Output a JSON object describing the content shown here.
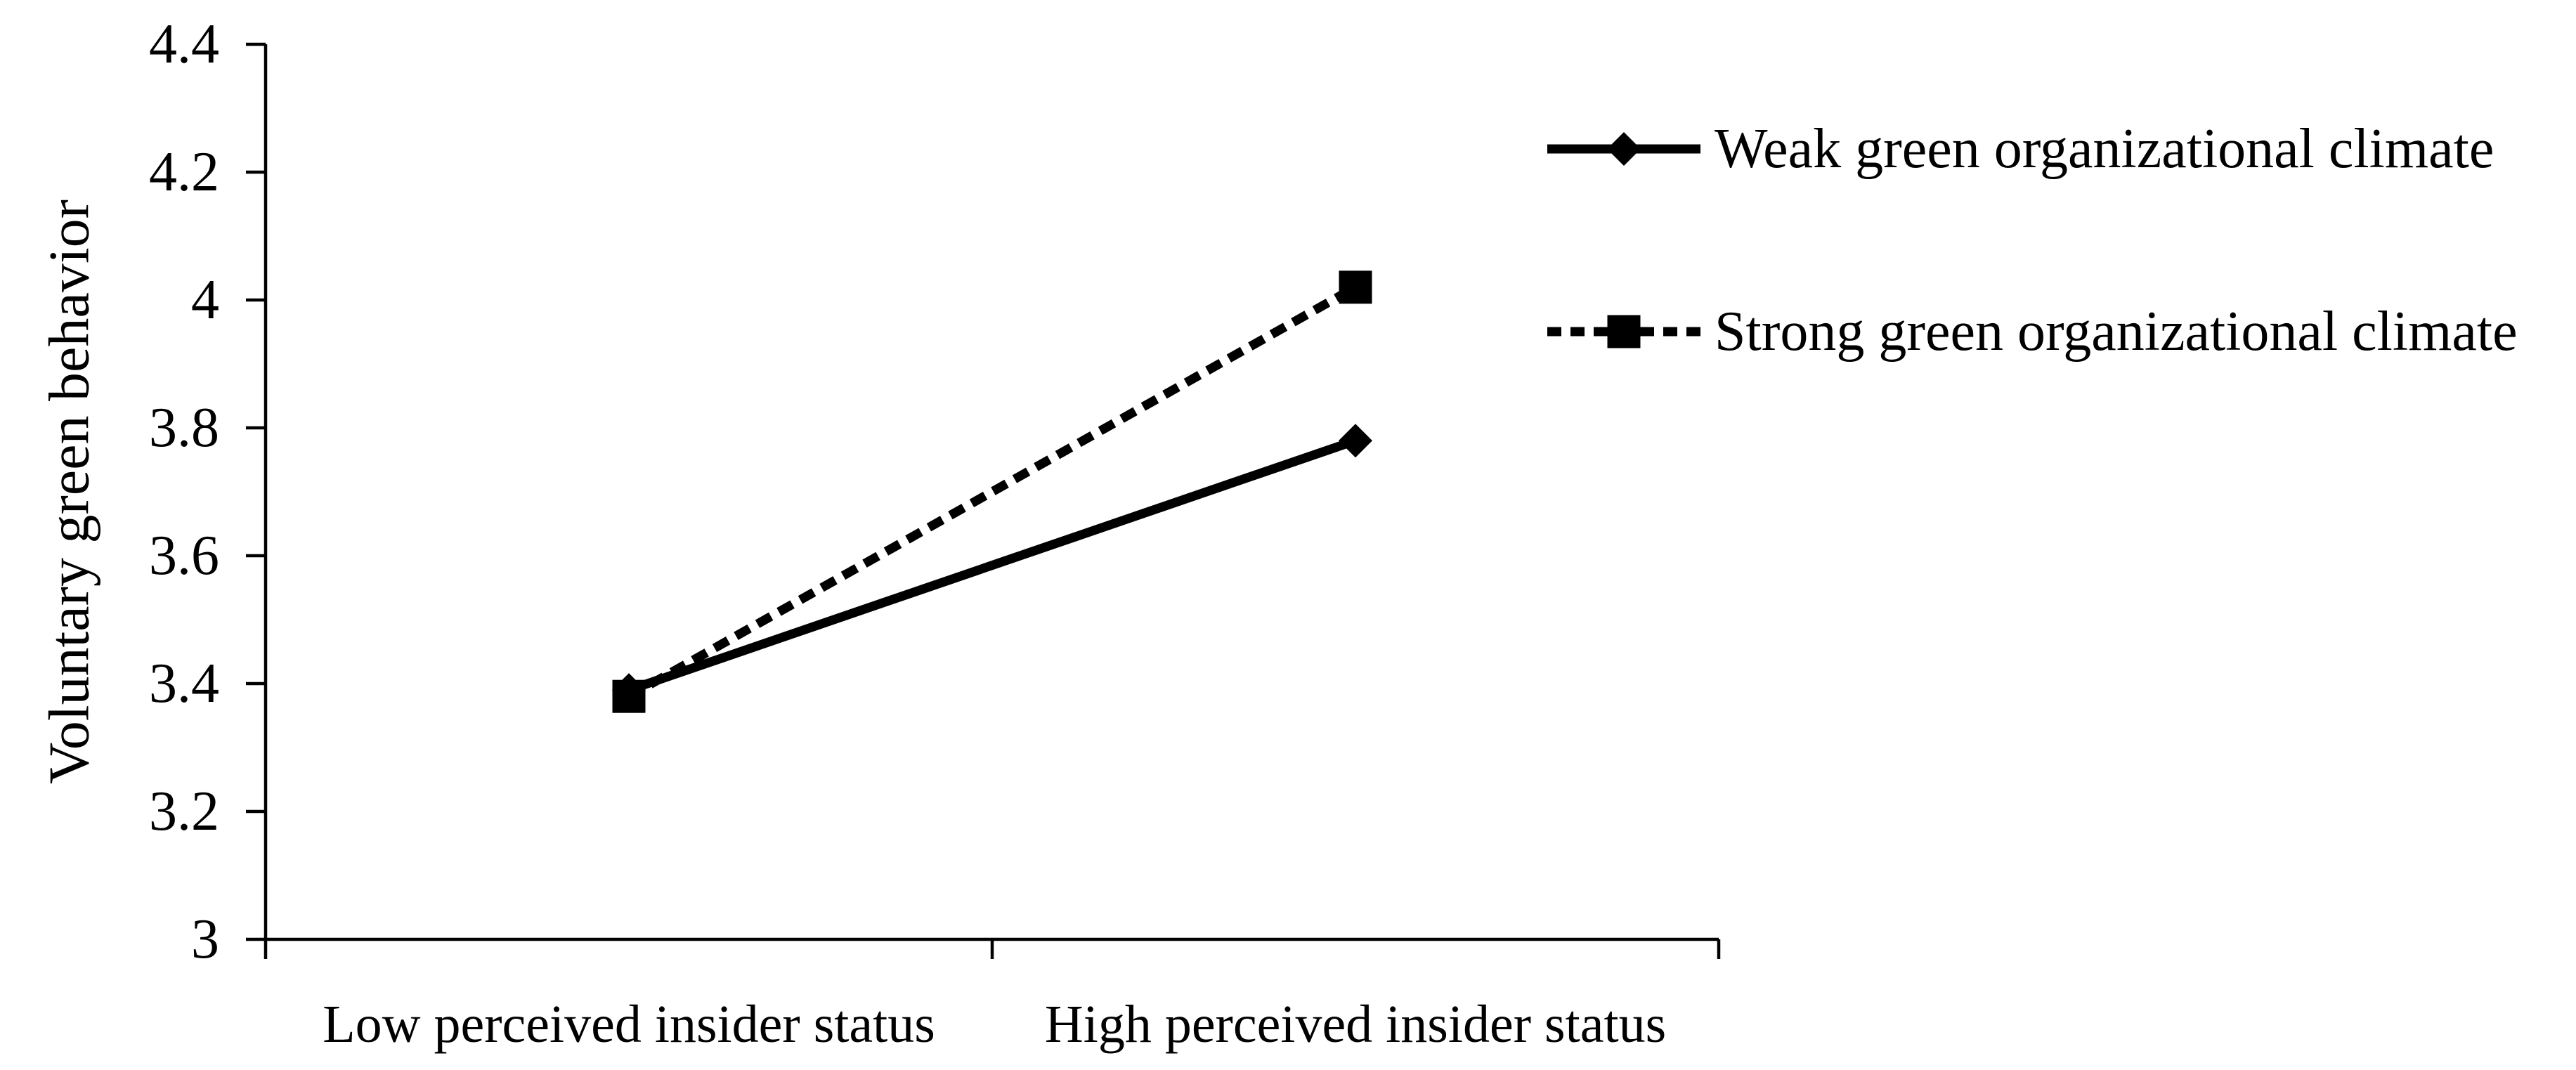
{
  "chart_data": {
    "type": "line",
    "title": "",
    "categories": [
      "Low perceived insider status",
      "High perceived insider status"
    ],
    "series": [
      {
        "name": "Weak green organizational climate",
        "values": [
          3.39,
          3.78
        ],
        "line_style": "solid",
        "marker": "diamond",
        "color": "#000000"
      },
      {
        "name": "Strong green organizational climate",
        "values": [
          3.38,
          4.02
        ],
        "line_style": "dashed",
        "marker": "square",
        "color": "#000000"
      }
    ],
    "xlabel": "",
    "ylabel": "Voluntary green behavior",
    "ylim": [
      3,
      4.4
    ],
    "y_ticks": [
      {
        "value": 3,
        "label": "3"
      },
      {
        "value": 3.2,
        "label": "3.2"
      },
      {
        "value": 3.4,
        "label": "3.4"
      },
      {
        "value": 3.6,
        "label": "3.6"
      },
      {
        "value": 3.8,
        "label": "3.8"
      },
      {
        "value": 4,
        "label": "4"
      },
      {
        "value": 4.2,
        "label": "4.2"
      },
      {
        "value": 4.4,
        "label": "4.4"
      }
    ],
    "grid": false,
    "legend_position": "right-top",
    "colors": {
      "foreground": "#000000",
      "background": "#ffffff"
    }
  }
}
